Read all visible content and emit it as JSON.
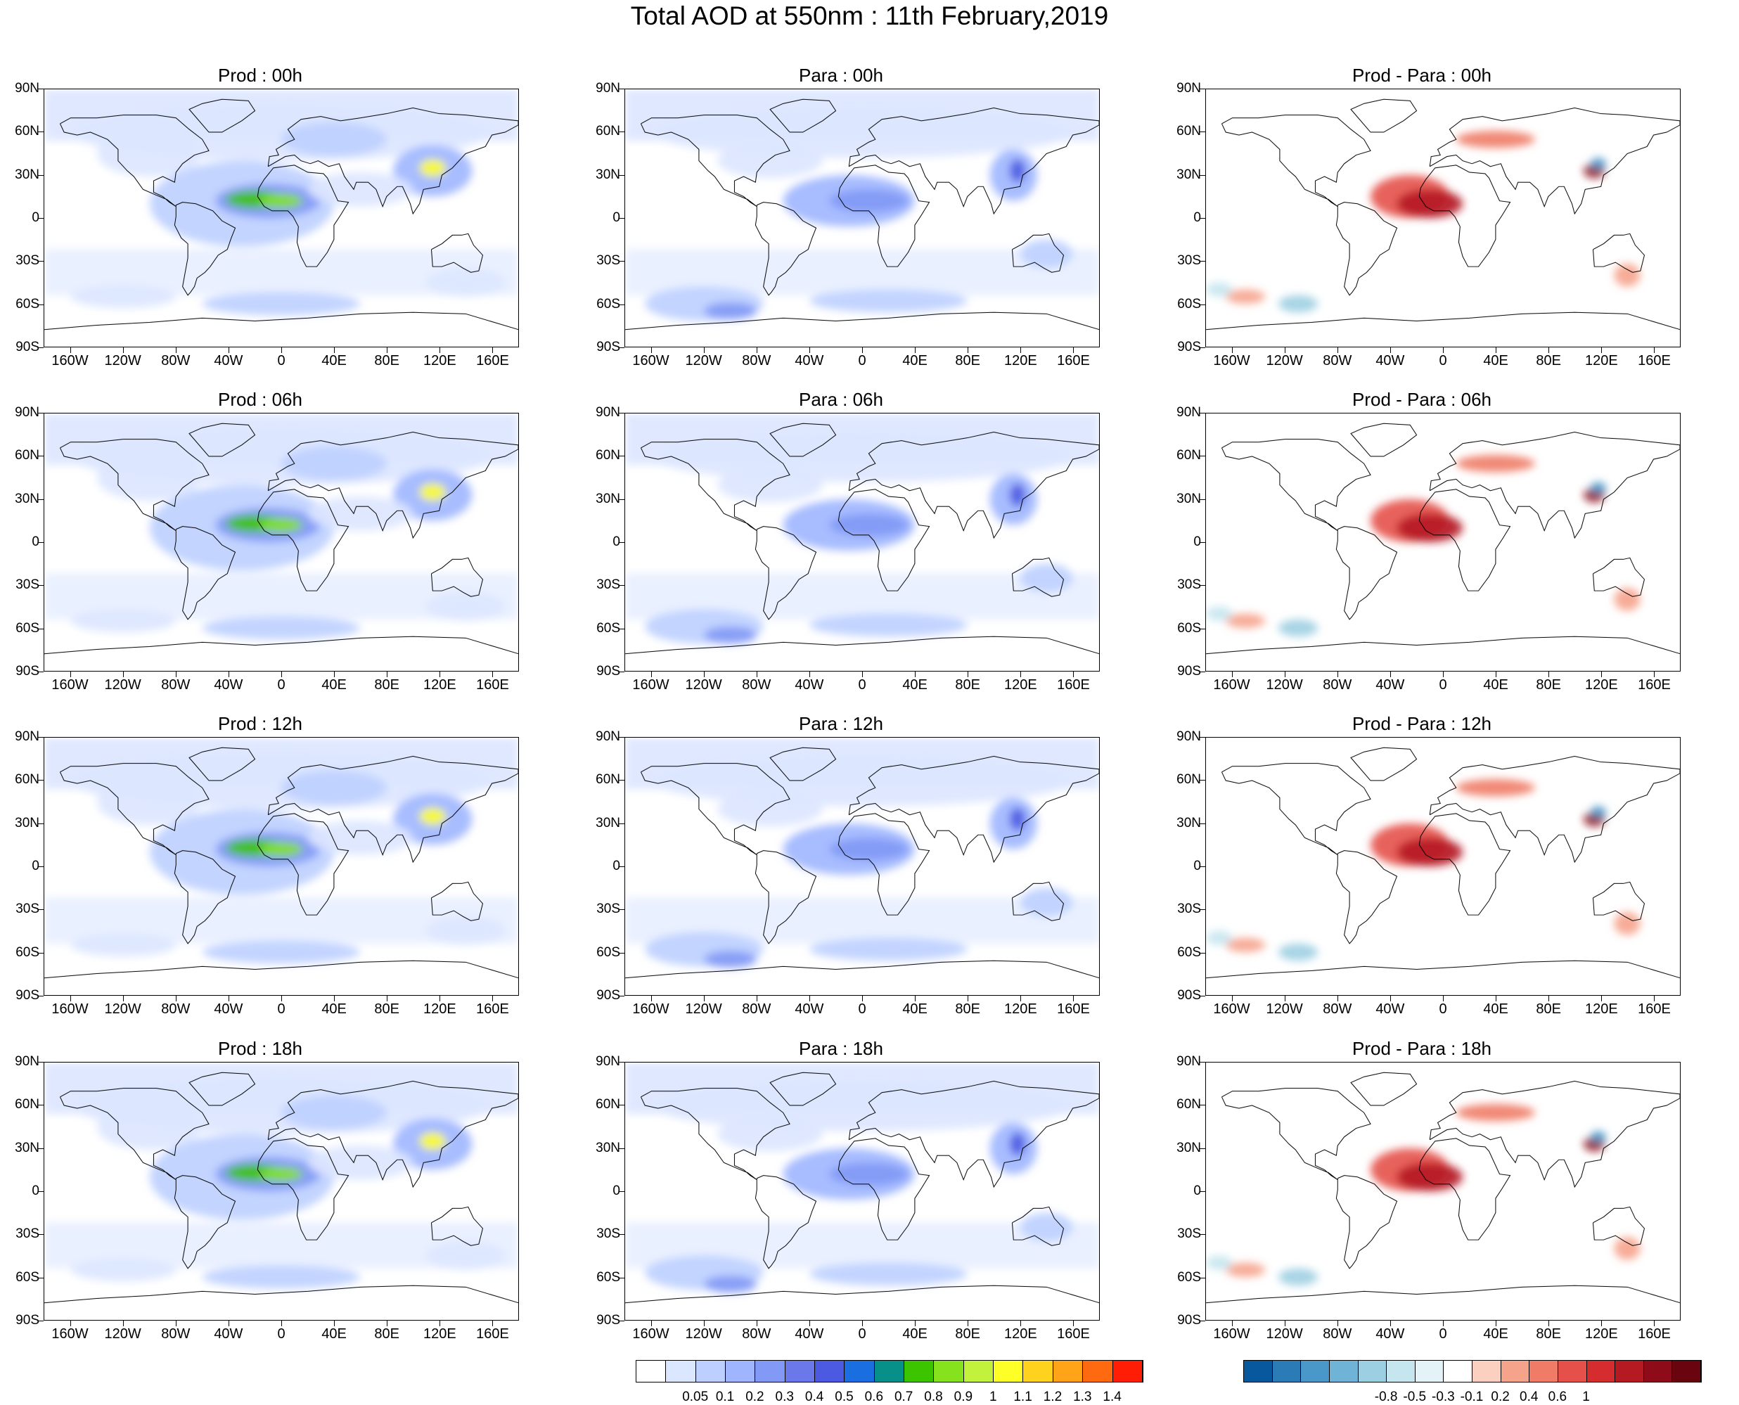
{
  "title": "Total AOD at 550nm : 11th February,2019",
  "lat_labels": [
    "90N",
    "60N",
    "30N",
    "0",
    "30S",
    "60S",
    "90S"
  ],
  "lon_labels": [
    "160W",
    "120W",
    "80W",
    "40W",
    "0",
    "40E",
    "80E",
    "120E",
    "160E"
  ],
  "panels": [
    {
      "id": "prod-00h",
      "title": "Prod : 00h",
      "kind": "prod",
      "col": 0,
      "row": 0
    },
    {
      "id": "para-00h",
      "title": "Para : 00h",
      "kind": "para",
      "col": 1,
      "row": 0
    },
    {
      "id": "diff-00h",
      "title": "Prod - Para : 00h",
      "kind": "diff",
      "col": 2,
      "row": 0
    },
    {
      "id": "prod-06h",
      "title": "Prod : 06h",
      "kind": "prod",
      "col": 0,
      "row": 1
    },
    {
      "id": "para-06h",
      "title": "Para : 06h",
      "kind": "para",
      "col": 1,
      "row": 1
    },
    {
      "id": "diff-06h",
      "title": "Prod - Para : 06h",
      "kind": "diff",
      "col": 2,
      "row": 1
    },
    {
      "id": "prod-12h",
      "title": "Prod : 12h",
      "kind": "prod",
      "col": 0,
      "row": 2
    },
    {
      "id": "para-12h",
      "title": "Para : 12h",
      "kind": "para",
      "col": 1,
      "row": 2
    },
    {
      "id": "diff-12h",
      "title": "Prod - Para : 12h",
      "kind": "diff",
      "col": 2,
      "row": 2
    },
    {
      "id": "prod-18h",
      "title": "Prod : 18h",
      "kind": "prod",
      "col": 0,
      "row": 3
    },
    {
      "id": "para-18h",
      "title": "Para : 18h",
      "kind": "para",
      "col": 1,
      "row": 3
    },
    {
      "id": "diff-18h",
      "title": "Prod - Para : 18h",
      "kind": "diff",
      "col": 2,
      "row": 3
    }
  ],
  "aod_colorbar": {
    "labels": [
      "0.05",
      "0.1",
      "0.2",
      "0.3",
      "0.4",
      "0.5",
      "0.6",
      "0.7",
      "0.8",
      "0.9",
      "1",
      "1.1",
      "1.2",
      "1.3",
      "1.4"
    ],
    "colors": [
      "#ffffff",
      "#dbe6ff",
      "#bccfff",
      "#9fb6ff",
      "#8299f5",
      "#6a78ea",
      "#4b5ae0",
      "#1b6ee0",
      "#07908a",
      "#3dc400",
      "#85e21c",
      "#c3f23d",
      "#ffff28",
      "#ffd21e",
      "#ffa319",
      "#ff6a10",
      "#ff1e05"
    ]
  },
  "diff_colorbar": {
    "labels": [
      "-0.8",
      "-0.5",
      "-0.3",
      "-0.1",
      "0.2",
      "0.4",
      "0.6",
      "1"
    ],
    "colors": [
      "#08589e",
      "#2b7bb6",
      "#4a98c9",
      "#6fb3d6",
      "#9dcfe2",
      "#c5e5ef",
      "#e4f3f8",
      "#ffffff",
      "#fbd0c0",
      "#f6a38c",
      "#f07b66",
      "#e5514a",
      "#d42c2f",
      "#b51a22",
      "#8e0c19",
      "#6a0510"
    ]
  }
}
